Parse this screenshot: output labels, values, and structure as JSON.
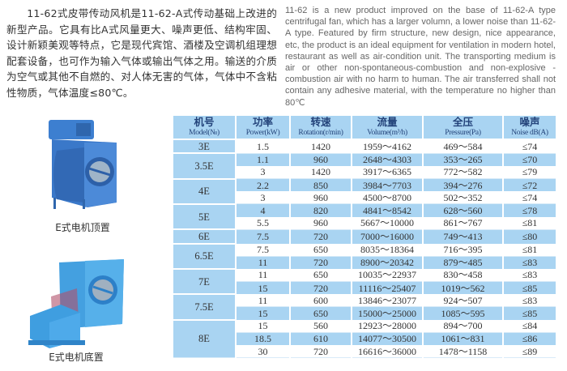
{
  "description_cn": {
    "paragraph": "11-62式皮带传动风机是11-62-A式传动基础上改进的新型产品。它具有比A式风量更大、噪声更低、结构牢固、设计新颖美观等特点，它是现代宾馆、酒楼及空调机组理想配套设备，也可作为输入气体或输出气体之用。输送的介质为空气或其他不自燃的、对人体无害的气体，气体中不含粘性物质，气体温度≤80℃。"
  },
  "description_en": "11-62 is a new product improved on the base of 11-62-A type centrifugal fan, which has a larger volumn, a lower noise than 11-62-A type. Featured by firm structure, new design, nice appearance, etc, the product is an ideal equipment for ventilation in modern hotel, restaurant as well as air-condition unit. The transporting medium is air or other non-spontaneous-combustion and non-explosive - combustion air with no harm to human. The air transferred shall not contain any adhesive material, with the temperature no higher than 80℃",
  "images": [
    {
      "caption": "E式电机顶置",
      "icon": "centrifugal-fan-motor-top"
    },
    {
      "caption": "E式电机底置",
      "icon": "centrifugal-fan-motor-bottom"
    }
  ],
  "colors": {
    "table_blue": "#a9d4f2",
    "header_text": "#23437a",
    "fan_blue": "#3a78c9"
  },
  "table": {
    "headers": [
      {
        "cn": "机号",
        "en": "Model(№)"
      },
      {
        "cn": "功率",
        "en": "Power(kW)"
      },
      {
        "cn": "转速",
        "en": "Rotation(r/min)"
      },
      {
        "cn": "流量",
        "en": "Volume(m³/h)"
      },
      {
        "cn": "全压",
        "en": "Pressure(Pa)"
      },
      {
        "cn": "噪声",
        "en": "Noise dB(A)"
      }
    ],
    "groups": [
      {
        "model": "3E",
        "rows": [
          [
            "1.5",
            "1420",
            "1959～4162",
            "469～584",
            "≤74"
          ]
        ]
      },
      {
        "model": "3.5E",
        "rows": [
          [
            "1.1",
            "960",
            "2648～4303",
            "353～265",
            "≤70"
          ],
          [
            "3",
            "1420",
            "3917～6365",
            "772～582",
            "≤79"
          ]
        ]
      },
      {
        "model": "4E",
        "rows": [
          [
            "2.2",
            "850",
            "3984～7703",
            "394～276",
            "≤72"
          ],
          [
            "3",
            "960",
            "4500～8700",
            "502～352",
            "≤74"
          ]
        ]
      },
      {
        "model": "5E",
        "rows": [
          [
            "4",
            "820",
            "4841～8542",
            "628～560",
            "≤78"
          ],
          [
            "5.5",
            "960",
            "5667～10000",
            "861～767",
            "≤81"
          ]
        ]
      },
      {
        "model": "6E",
        "rows": [
          [
            "7.5",
            "720",
            "7000～16000",
            "749～413",
            "≤80"
          ]
        ]
      },
      {
        "model": "6.5E",
        "rows": [
          [
            "7.5",
            "650",
            "8035～18364",
            "716～395",
            "≤81"
          ],
          [
            "11",
            "720",
            "8900～20342",
            "879～485",
            "≤83"
          ]
        ]
      },
      {
        "model": "7E",
        "rows": [
          [
            "11",
            "650",
            "10035～22937",
            "830～458",
            "≤83"
          ],
          [
            "15",
            "720",
            "11116～25407",
            "1019～562",
            "≤85"
          ]
        ]
      },
      {
        "model": "7.5E",
        "rows": [
          [
            "11",
            "600",
            "13846～23077",
            "924～507",
            "≤83"
          ],
          [
            "15",
            "650",
            "15000～25000",
            "1085～595",
            "≤85"
          ]
        ]
      },
      {
        "model": "8E",
        "rows": [
          [
            "15",
            "560",
            "12923～28000",
            "894～700",
            "≤84"
          ],
          [
            "18.5",
            "610",
            "14077～30500",
            "1061～831",
            "≤86"
          ],
          [
            "30",
            "720",
            "16616～36000",
            "1478～1158",
            "≤89"
          ]
        ]
      }
    ]
  }
}
